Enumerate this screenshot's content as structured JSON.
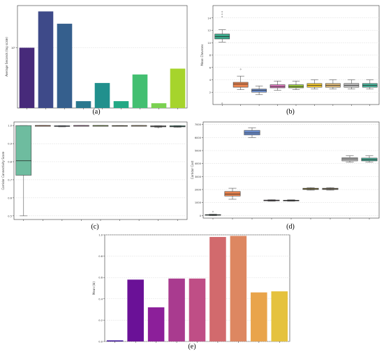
{
  "panels": [
    "(a)",
    "(b)",
    "(c)",
    "(d)",
    "(e)"
  ],
  "chart_data": [
    {
      "id": "a",
      "type": "bar",
      "ylabel": "Average Seconds (log scale)",
      "yscale": "log",
      "ylim": [
        0.1,
        5
      ],
      "ytick_labels": [
        {
          "value": 1,
          "label": "10⁰"
        }
      ],
      "grid": true,
      "values": [
        1.0,
        4.0,
        2.5,
        0.13,
        0.26,
        0.13,
        0.36,
        0.12,
        0.45
      ],
      "colors": [
        "#472a7a",
        "#3e4a89",
        "#355f8d",
        "#2a788e",
        "#21908d",
        "#22a884",
        "#43bf71",
        "#7ad151",
        "#a6d42c"
      ]
    },
    {
      "id": "b",
      "type": "box",
      "ylabel": "Mean Chevrons",
      "ylim": [
        0,
        16
      ],
      "yticks": [
        2,
        4,
        6,
        8,
        10,
        12,
        14
      ],
      "grid": true,
      "boxes": [
        {
          "whislo": 10.1,
          "q1": 10.6,
          "med": 11.0,
          "q3": 11.4,
          "whishi": 12.1,
          "fliers": [
            14.2,
            14.6,
            15.0,
            0.2
          ],
          "color": "#3aa88a"
        },
        {
          "whislo": 2.4,
          "q1": 2.8,
          "med": 3.3,
          "q3": 3.6,
          "whishi": 4.6,
          "fliers": [
            5.7
          ],
          "color": "#e8834e"
        },
        {
          "whislo": 1.6,
          "q1": 2.0,
          "med": 2.3,
          "q3": 2.5,
          "whishi": 3.0,
          "fliers": [],
          "color": "#6d8fcf"
        },
        {
          "whislo": 2.3,
          "q1": 2.7,
          "med": 2.9,
          "q3": 3.2,
          "whishi": 3.8,
          "fliers": [],
          "color": "#d874b8"
        },
        {
          "whislo": 2.4,
          "q1": 2.7,
          "med": 2.9,
          "q3": 3.2,
          "whishi": 3.8,
          "fliers": [],
          "color": "#9ac93c"
        },
        {
          "whislo": 2.5,
          "q1": 2.8,
          "med": 3.1,
          "q3": 3.4,
          "whishi": 4.0,
          "fliers": [],
          "color": "#efc52e"
        },
        {
          "whislo": 2.5,
          "q1": 2.8,
          "med": 3.1,
          "q3": 3.4,
          "whishi": 4.0,
          "fliers": [],
          "color": "#dcb877"
        },
        {
          "whislo": 2.5,
          "q1": 2.8,
          "med": 3.1,
          "q3": 3.4,
          "whishi": 4.0,
          "fliers": [],
          "color": "#bdbdbd"
        },
        {
          "whislo": 2.5,
          "q1": 2.8,
          "med": 3.1,
          "q3": 3.4,
          "whishi": 4.0,
          "fliers": [],
          "color": "#48b29a"
        }
      ]
    },
    {
      "id": "c",
      "type": "box",
      "ylabel": "Corridor Connectivity Score",
      "ylim": [
        0.48,
        1.02
      ],
      "yticks": [
        0.5,
        0.6,
        0.7,
        0.8,
        0.9,
        1.0
      ],
      "ytick_labels": [
        "0.5",
        "0.6",
        "0.7",
        "0.8",
        "0.9",
        "1.0"
      ],
      "grid": true,
      "boxes": [
        {
          "whislo": 0.5,
          "q1": 0.725,
          "med": 0.805,
          "q3": 1.0,
          "whishi": 1.0,
          "fliers": [],
          "color": "#6ebc9f"
        },
        {
          "whislo": 0.999,
          "q1": 0.999,
          "med": 1.0,
          "q3": 1.0,
          "whishi": 1.0,
          "fliers": [],
          "color": "#e8834e"
        },
        {
          "whislo": 0.993,
          "q1": 0.995,
          "med": 0.997,
          "q3": 0.999,
          "whishi": 1.0,
          "fliers": [],
          "color": "#6d8fcf"
        },
        {
          "whislo": 0.999,
          "q1": 0.999,
          "med": 1.0,
          "q3": 1.0,
          "whishi": 1.0,
          "fliers": [],
          "color": "#d874b8"
        },
        {
          "whislo": 0.999,
          "q1": 0.999,
          "med": 1.0,
          "q3": 1.0,
          "whishi": 1.0,
          "fliers": [],
          "color": "#9ac93c"
        },
        {
          "whislo": 0.997,
          "q1": 0.998,
          "med": 0.999,
          "q3": 1.0,
          "whishi": 1.0,
          "fliers": [],
          "color": "#efc52e"
        },
        {
          "whislo": 0.999,
          "q1": 0.999,
          "med": 1.0,
          "q3": 1.0,
          "whishi": 1.0,
          "fliers": [],
          "color": "#dcb877"
        },
        {
          "whislo": 0.99,
          "q1": 0.993,
          "med": 0.996,
          "q3": 0.999,
          "whishi": 1.0,
          "fliers": [
            0.988
          ],
          "color": "#bdbdbd"
        },
        {
          "whislo": 0.99,
          "q1": 0.993,
          "med": 0.996,
          "q3": 0.999,
          "whishi": 1.0,
          "fliers": [],
          "color": "#48b29a"
        }
      ]
    },
    {
      "id": "d",
      "type": "box",
      "ylabel": "Corridor Cost",
      "ylim": [
        -200,
        7200
      ],
      "yticks": [
        0,
        1000,
        2000,
        3000,
        4000,
        5000,
        6000,
        7000
      ],
      "grid": true,
      "boxes": [
        {
          "whislo": -20,
          "q1": 20,
          "med": 40,
          "q3": 70,
          "whishi": 110,
          "fliers": [
            300
          ],
          "color": "#3aa88a"
        },
        {
          "whislo": 1250,
          "q1": 1500,
          "med": 1650,
          "q3": 1850,
          "whishi": 2100,
          "fliers": [],
          "color": "#e8834e"
        },
        {
          "whislo": 6000,
          "q1": 6200,
          "med": 6350,
          "q3": 6550,
          "whishi": 6750,
          "fliers": [],
          "color": "#6d8fcf"
        },
        {
          "whislo": 1100,
          "q1": 1130,
          "med": 1160,
          "q3": 1190,
          "whishi": 1220,
          "fliers": [],
          "color": "#d874b8"
        },
        {
          "whislo": 1100,
          "q1": 1125,
          "med": 1150,
          "q3": 1180,
          "whishi": 1210,
          "fliers": [],
          "color": "#9ac93c"
        },
        {
          "whislo": 1950,
          "q1": 2000,
          "med": 2050,
          "q3": 2100,
          "whishi": 2150,
          "fliers": [],
          "color": "#efc52e"
        },
        {
          "whislo": 1950,
          "q1": 2000,
          "med": 2050,
          "q3": 2100,
          "whishi": 2150,
          "fliers": [],
          "color": "#dcb877"
        },
        {
          "whislo": 4100,
          "q1": 4200,
          "med": 4350,
          "q3": 4450,
          "whishi": 4600,
          "fliers": [],
          "color": "#bdbdbd"
        },
        {
          "whislo": 4100,
          "q1": 4200,
          "med": 4300,
          "q3": 4420,
          "whishi": 4600,
          "fliers": [],
          "color": "#48b29a"
        }
      ]
    },
    {
      "id": "e",
      "type": "bar",
      "ylabel": "Mean (Id)",
      "ylim": [
        0,
        1.0
      ],
      "yticks": [
        0.0,
        0.2,
        0.4,
        0.6,
        0.8,
        1.0
      ],
      "ytick_labels": [
        "0.0",
        "0.2",
        "0.4",
        "0.6",
        "0.8",
        "1.0"
      ],
      "grid": true,
      "values": [
        0.01,
        0.58,
        0.32,
        0.59,
        0.59,
        0.98,
        0.99,
        0.46,
        0.47
      ],
      "colors": [
        "#3a0f96",
        "#6a1197",
        "#8c1f9a",
        "#a93b8f",
        "#bf4e86",
        "#d26a6d",
        "#dd8761",
        "#e9a44b",
        "#e5c23e"
      ]
    }
  ]
}
